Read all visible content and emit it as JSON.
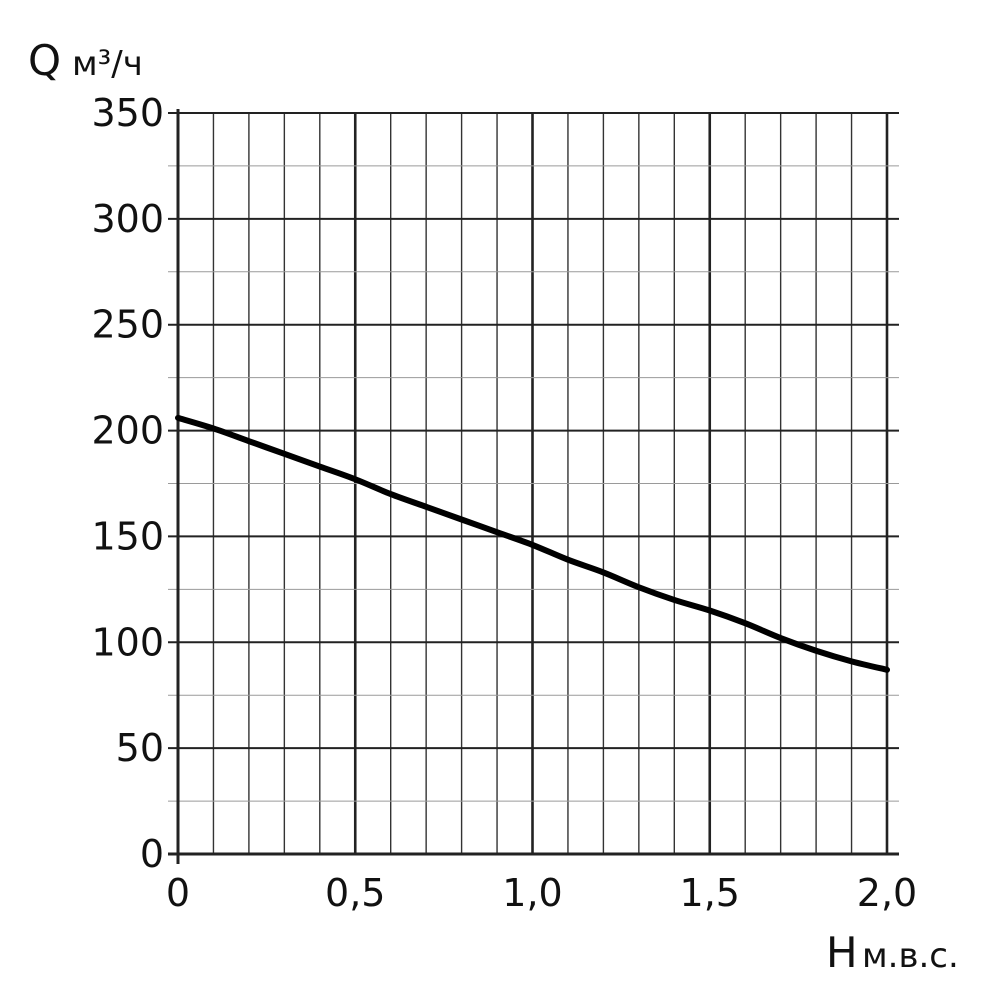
{
  "chart_data": {
    "type": "line",
    "ylabel": "Q",
    "yunit": "м³/ч",
    "xlabel": "H",
    "xunit": "м.в.с.",
    "xlim": [
      0,
      2.0
    ],
    "ylim": [
      0,
      350
    ],
    "x_ticks": [
      "0",
      "0,5",
      "1,0",
      "1,5",
      "2,0"
    ],
    "y_ticks": [
      "0",
      "50",
      "100",
      "150",
      "200",
      "250",
      "300",
      "350"
    ],
    "grid": true,
    "series": [
      {
        "x": [
          0,
          0.1,
          0.2,
          0.3,
          0.4,
          0.5,
          0.6,
          0.7,
          0.8,
          0.9,
          1.0,
          1.1,
          1.2,
          1.3,
          1.4,
          1.5,
          1.6,
          1.7,
          1.8,
          1.9,
          2.0
        ],
        "y": [
          206,
          201,
          195,
          189,
          183,
          177,
          170,
          164,
          158,
          152,
          146,
          139,
          133,
          126,
          120,
          115,
          109,
          102,
          96,
          91,
          87
        ]
      }
    ],
    "colors": {
      "curve": "#000000",
      "grid_major": "#222222",
      "grid_minor": "#9a9a9a",
      "axis": "#222222"
    }
  }
}
